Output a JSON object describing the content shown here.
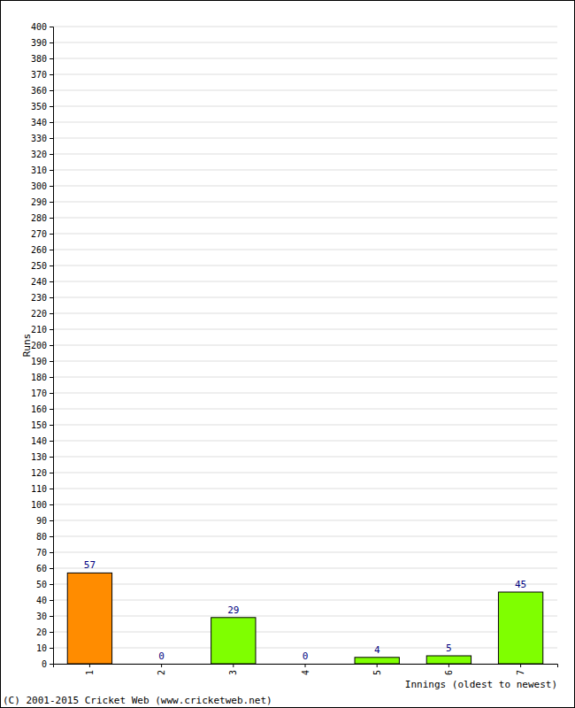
{
  "chart_data": {
    "type": "bar",
    "x_label": "Innings (oldest to newest)",
    "y_label": "Runs",
    "annotations": [
      "(C) 2001-2015 Cricket Web (www.cricketweb.net)"
    ],
    "categories": [
      "1",
      "2",
      "3",
      "4",
      "5",
      "6",
      "7"
    ],
    "values": [
      57,
      0,
      29,
      0,
      4,
      5,
      45
    ],
    "colors": [
      "#ff8c00",
      "#7fff00",
      "#7fff00",
      "#7fff00",
      "#7fff00",
      "#7fff00",
      "#7fff00"
    ],
    "ylim": [
      0,
      400
    ],
    "yticks": [
      0,
      10,
      20,
      30,
      40,
      50,
      60,
      70,
      80,
      90,
      100,
      110,
      120,
      130,
      140,
      150,
      160,
      170,
      180,
      190,
      200,
      210,
      220,
      230,
      240,
      250,
      260,
      270,
      280,
      290,
      300,
      310,
      320,
      330,
      340,
      350,
      360,
      370,
      380,
      390,
      400
    ],
    "grid": true,
    "data_labels": true
  }
}
